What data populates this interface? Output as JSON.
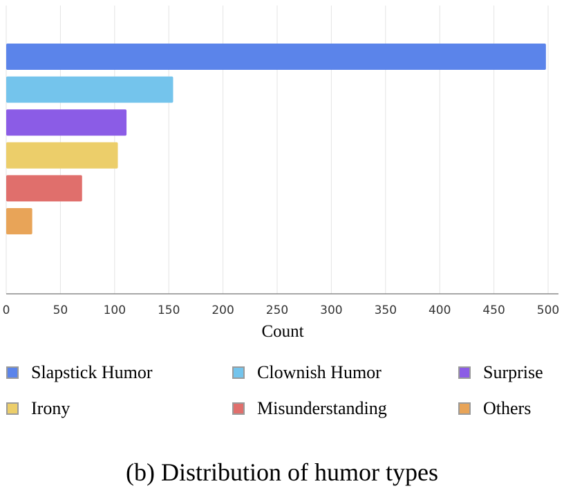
{
  "chart_data": {
    "type": "bar",
    "orientation": "horizontal",
    "categories": [
      "Slapstick Humor",
      "Clownish Humor",
      "Surprise",
      "Irony",
      "Misunderstanding",
      "Others"
    ],
    "values": [
      498,
      154,
      111,
      103,
      70,
      24
    ],
    "colors": [
      "#5b84ea",
      "#74c4ec",
      "#8b5ce6",
      "#ecce6a",
      "#e06f6c",
      "#e8a458"
    ],
    "xlabel": "Count",
    "ylabel": "",
    "xlim": [
      0,
      500
    ],
    "xticks": [
      0,
      50,
      100,
      150,
      200,
      250,
      300,
      350,
      400,
      450,
      500
    ],
    "grid": true,
    "legend_position": "bottom"
  },
  "legend": {
    "items": [
      {
        "label": "Slapstick Humor",
        "color": "#5b84ea"
      },
      {
        "label": "Clownish Humor",
        "color": "#74c4ec"
      },
      {
        "label": "Surprise",
        "color": "#8b5ce6"
      },
      {
        "label": "Irony",
        "color": "#ecce6a"
      },
      {
        "label": "Misunderstanding",
        "color": "#e06f6c"
      },
      {
        "label": "Others",
        "color": "#e8a458"
      }
    ]
  },
  "caption": "(b) Distribution of humor types"
}
